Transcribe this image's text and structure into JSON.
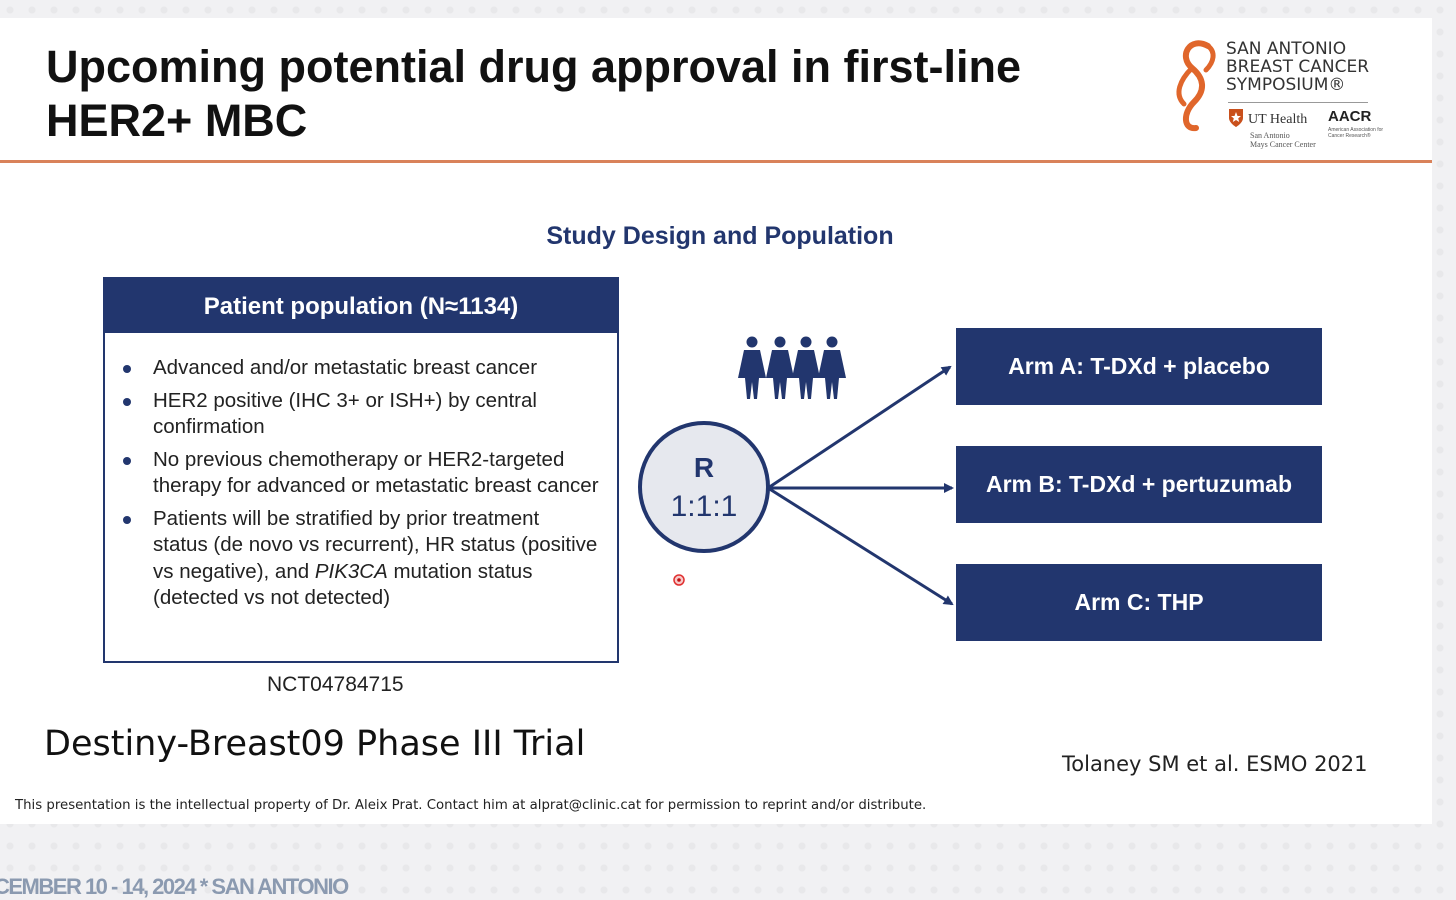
{
  "slide": {
    "title_line1": "Upcoming potential drug approval in first-line",
    "title_line2": "HER2+ MBC",
    "accent_color": "#d9825a",
    "brand_color": "#22366e"
  },
  "logo": {
    "line1": "SAN ANTONIO",
    "line2": "BREAST CANCER",
    "line3": "SYMPOSIUM®",
    "ut_health": "UT Health",
    "ut_sub1": "San Antonio",
    "ut_sub2": "Mays Cancer Center",
    "aacr": "AACR",
    "aacr_sub": "American Association for Cancer Research®"
  },
  "study": {
    "heading": "Study Design and Population",
    "population_header": "Patient population (N≈1134)",
    "criteria": [
      "Advanced and/or metastatic breast cancer",
      "HER2 positive (IHC 3+ or ISH+) by central confirmation",
      "No previous chemotherapy or HER2-targeted therapy for advanced or metastatic breast cancer"
    ],
    "criterion4_before": "Patients will be stratified by prior treatment status (de novo vs recurrent), HR status (positive vs negative), and ",
    "criterion4_italic": "PIK3CA",
    "criterion4_after": " mutation status (detected vs not detected)",
    "nct": "NCT04784715",
    "randomization_letter": "R",
    "randomization_ratio": "1:1:1",
    "people_icon": "group-of-women-icon",
    "arms": [
      "Arm A: T-DXd + placebo",
      "Arm B: T-DXd + pertuzumab",
      "Arm C: THP"
    ]
  },
  "trial_name": "Destiny-Breast09 Phase III Trial",
  "citation": "Tolaney SM et al. ESMO 2021",
  "footer_note": "This presentation is the intellectual property of Dr. Aleix Prat. Contact him at alprat@clinic.cat for permission to reprint and/or distribute.",
  "banner": "CEMBER 10 - 14, 2024 * SAN ANTONIO"
}
